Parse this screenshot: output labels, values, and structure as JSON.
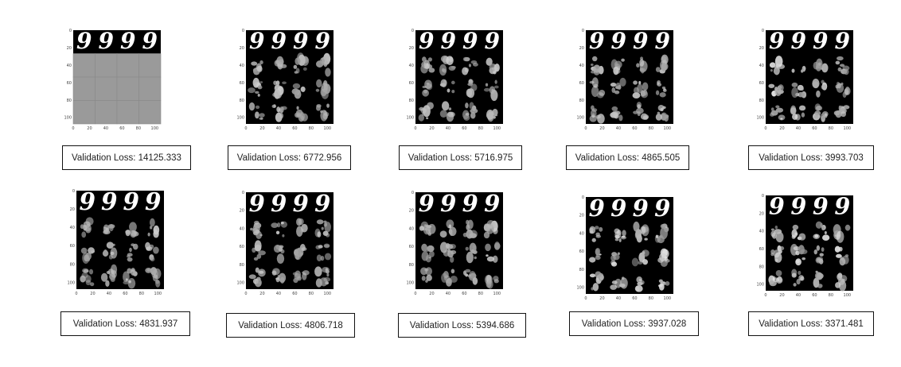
{
  "panels": [
    {
      "id": "p1",
      "loss_label": "Validation Loss: 14125.333",
      "style": "noise",
      "x_ticks": [
        "0",
        "20",
        "40",
        "60",
        "80",
        "100"
      ],
      "y_ticks": [
        "0",
        "20",
        "40",
        "60",
        "80",
        "100"
      ]
    },
    {
      "id": "p2",
      "loss_label": "Validation Loss: 6772.956",
      "style": "blurry",
      "x_ticks": [
        "0",
        "20",
        "40",
        "60",
        "80",
        "100"
      ],
      "y_ticks": [
        "0",
        "20",
        "40",
        "60",
        "80",
        "100"
      ]
    },
    {
      "id": "p3",
      "loss_label": "Validation Loss: 5716.975",
      "style": "blurry",
      "x_ticks": [
        "0",
        "20",
        "40",
        "60",
        "80",
        "100"
      ],
      "y_ticks": [
        "0",
        "20",
        "40",
        "60",
        "80",
        "100"
      ]
    },
    {
      "id": "p4",
      "loss_label": "Validation Loss: 4865.505",
      "style": "blurry",
      "x_ticks": [
        "0",
        "20",
        "40",
        "60",
        "80",
        "100"
      ],
      "y_ticks": [
        "0",
        "20",
        "40",
        "60",
        "80",
        "100"
      ]
    },
    {
      "id": "p5",
      "loss_label": "Validation Loss: 3993.703",
      "style": "sharp",
      "x_ticks": [
        "0",
        "20",
        "40",
        "60",
        "80",
        "100"
      ],
      "y_ticks": [
        "0",
        "20",
        "40",
        "60",
        "80",
        "100"
      ]
    },
    {
      "id": "p6",
      "loss_label": "Validation Loss: 4831.937",
      "style": "blurry",
      "x_ticks": [
        "0",
        "20",
        "40",
        "60",
        "80",
        "100"
      ],
      "y_ticks": [
        "0",
        "20",
        "40",
        "60",
        "80",
        "100"
      ]
    },
    {
      "id": "p7",
      "loss_label": "Validation Loss: 4806.718",
      "style": "blurry",
      "x_ticks": [
        "0",
        "20",
        "40",
        "60",
        "80",
        "100"
      ],
      "y_ticks": [
        "0",
        "20",
        "40",
        "60",
        "80",
        "100"
      ]
    },
    {
      "id": "p8",
      "loss_label": "Validation Loss: 5394.686",
      "style": "blurry",
      "x_ticks": [
        "0",
        "20",
        "40",
        "60",
        "80",
        "100"
      ],
      "y_ticks": [
        "0",
        "20",
        "40",
        "60",
        "80",
        "100"
      ]
    },
    {
      "id": "p9",
      "loss_label": "Validation Loss: 3937.028",
      "style": "sharp",
      "x_ticks": [
        "0",
        "20",
        "40",
        "60",
        "80",
        "100"
      ],
      "y_ticks": [
        "0",
        "20",
        "40",
        "60",
        "80",
        "100"
      ]
    },
    {
      "id": "p10",
      "loss_label": "Validation Loss: 3371.481",
      "style": "sharp",
      "x_ticks": [
        "0",
        "20",
        "40",
        "60",
        "80",
        "100"
      ],
      "y_ticks": [
        "0",
        "20",
        "40",
        "60",
        "80",
        "100"
      ]
    }
  ],
  "top_row_digit": "9",
  "colors": {
    "background": "#ffffff",
    "image_bg": "#000000",
    "noise_gray": "#9a9a9a",
    "digit": "#ffffff",
    "box_border": "#111111"
  }
}
